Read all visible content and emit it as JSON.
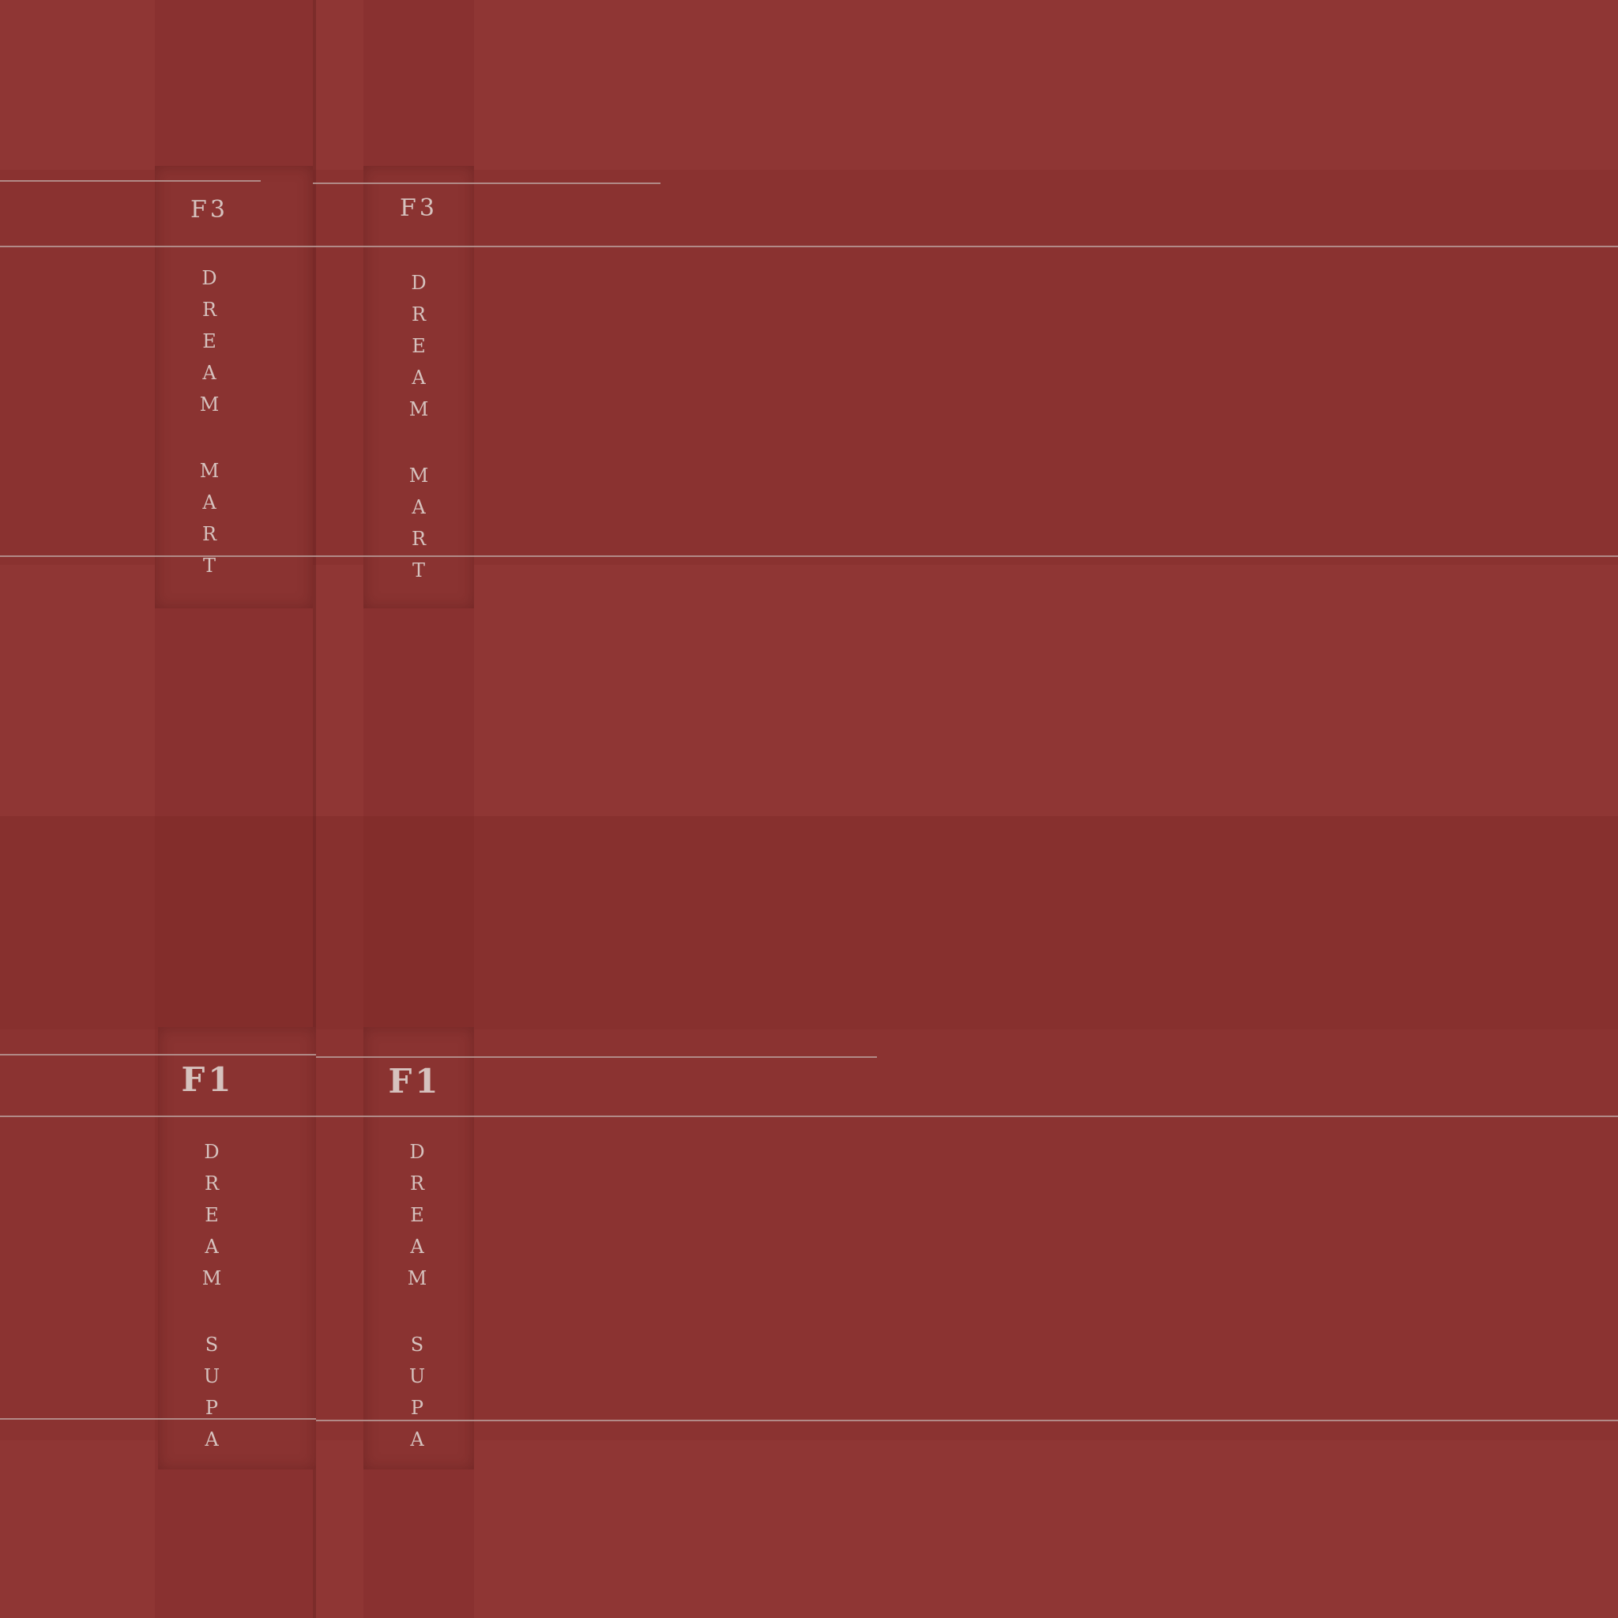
{
  "panels": [
    {
      "floor": "F3",
      "name_line1": "DREAM",
      "name_line2": "MART"
    },
    {
      "floor": "F3",
      "name_line1": "DREAM",
      "name_line2": "MART"
    },
    {
      "floor": "F1",
      "name_line1": "DREAM",
      "name_line2": "SUPA"
    },
    {
      "floor": "F1",
      "name_line1": "DREAM",
      "name_line2": "SUPA"
    }
  ],
  "colors": {
    "background": "#8e3633",
    "dark_band": "#87302e",
    "line": "#b99a97",
    "text": "#d6c2be"
  }
}
